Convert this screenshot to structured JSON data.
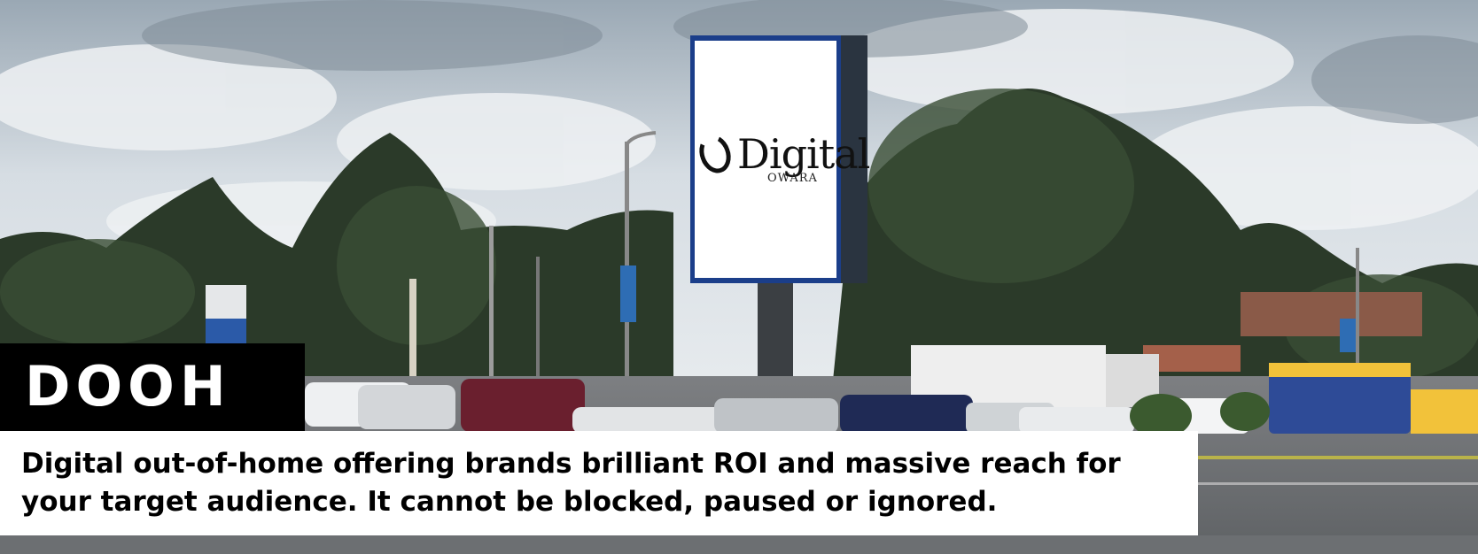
{
  "banner": {
    "title": "DOOH",
    "description": "Digital out-of-home offering brands brilliant ROI and massive reach for your target audience. It cannot be blocked, paused or ignored."
  },
  "billboard": {
    "logo_text": "Digital",
    "logo_subtext": "OWARA"
  },
  "colors": {
    "sky": "#c9d2da",
    "trees": "#2c3d2a",
    "banner_black": "#000000",
    "banner_white": "#ffffff"
  }
}
